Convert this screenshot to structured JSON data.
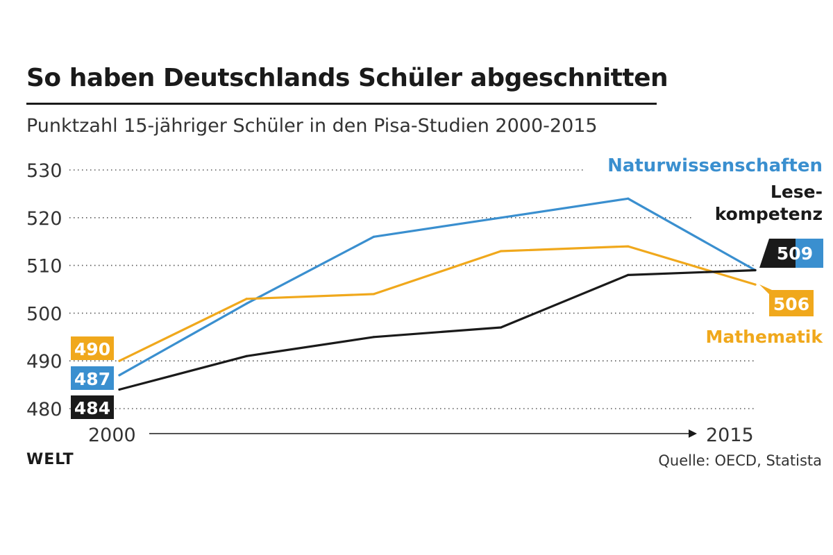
{
  "header": {
    "title": "So haben Deutschlands Schüler abgeschnitten",
    "subtitle": "Punktzahl 15-jähriger Schüler in den Pisa-Studien 2000-2015"
  },
  "footer": {
    "logo": "WELT",
    "source": "Quelle: OECD, Statista"
  },
  "colors": {
    "naturwissenschaften": "#3a8fcf",
    "mathematik": "#f0a81c",
    "lesekompetenz": "#1a1a1a",
    "grid": "#555555"
  },
  "chart_data": {
    "type": "line",
    "x": [
      2000,
      2003,
      2006,
      2009,
      2012,
      2015
    ],
    "x_tick_labels": [
      "2000",
      "2015"
    ],
    "y_ticks": [
      480,
      490,
      500,
      510,
      520,
      530
    ],
    "ylim": [
      480,
      530
    ],
    "grid": true,
    "series": [
      {
        "key": "naturwissenschaften",
        "name": "Naturwissenschaften",
        "values": [
          487,
          502,
          516,
          520,
          524,
          509
        ]
      },
      {
        "key": "mathematik",
        "name": "Mathematik",
        "values": [
          490,
          503,
          504,
          513,
          514,
          506
        ]
      },
      {
        "key": "lesekompetenz",
        "name": "Lese-kompetenz",
        "name_lines": [
          "Lese-",
          "kompetenz"
        ],
        "values": [
          484,
          491,
          495,
          497,
          508,
          509
        ]
      }
    ],
    "start_labels": [
      {
        "series": "mathematik",
        "text": "490"
      },
      {
        "series": "naturwissenschaften",
        "text": "487"
      },
      {
        "series": "lesekompetenz",
        "text": "484"
      }
    ],
    "end_labels": [
      {
        "series": "lesekompetenz",
        "text": "509"
      },
      {
        "series": "mathematik",
        "text": "506"
      }
    ]
  }
}
